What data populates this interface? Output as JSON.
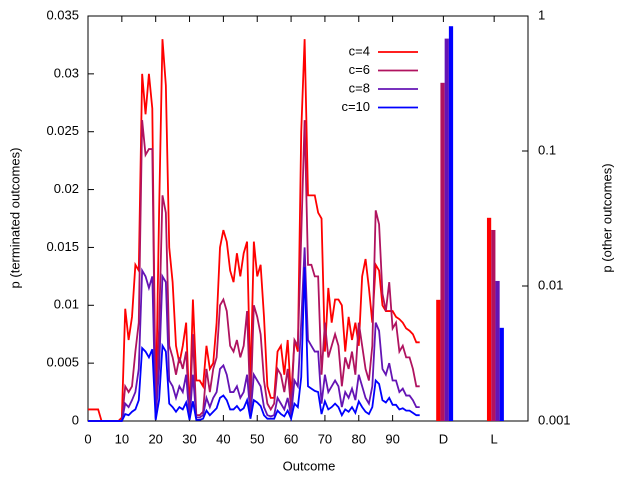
{
  "chart_data": {
    "type": "line",
    "x_label": "Outcome",
    "y_label": "p (terminated outcomes)",
    "y2_label": "p (other outcomes)",
    "xlim": [
      0,
      130
    ],
    "xticks": [
      0,
      10,
      20,
      30,
      40,
      50,
      60,
      70,
      80,
      90,
      {
        "value": 105,
        "label": "D"
      },
      {
        "value": 120,
        "label": "L"
      }
    ],
    "ylim": [
      0,
      0.035
    ],
    "yticks": [
      0,
      0.005,
      0.01,
      0.015,
      0.02,
      0.025,
      0.03,
      0.035
    ],
    "y2lim": [
      0.001,
      1
    ],
    "y2ticks": [
      0.001,
      0.01,
      0.1,
      1
    ],
    "y2_log": true,
    "legend": "top-right",
    "x": [
      0,
      1,
      2,
      3,
      4,
      5,
      6,
      7,
      8,
      9,
      10,
      11,
      12,
      13,
      14,
      15,
      16,
      17,
      18,
      19,
      20,
      21,
      22,
      23,
      24,
      25,
      26,
      27,
      28,
      29,
      30,
      31,
      32,
      33,
      34,
      35,
      36,
      37,
      38,
      39,
      40,
      41,
      42,
      43,
      44,
      45,
      46,
      47,
      48,
      49,
      50,
      51,
      52,
      53,
      54,
      55,
      56,
      57,
      58,
      59,
      60,
      61,
      62,
      63,
      64,
      65,
      66,
      67,
      68,
      69,
      70,
      71,
      72,
      73,
      74,
      75,
      76,
      77,
      78,
      79,
      80,
      81,
      82,
      83,
      84,
      85,
      86,
      87,
      88,
      89,
      90,
      91,
      92,
      93,
      94,
      95,
      96,
      97,
      98
    ],
    "series": [
      {
        "name": "c=4",
        "color": "#ff0000",
        "values": [
          0.001,
          0.001,
          0.001,
          0.001,
          0,
          0,
          0,
          0,
          0,
          0,
          0.0003,
          0.0097,
          0.007,
          0.009,
          0.0135,
          0.013,
          0.03,
          0.0265,
          0.03,
          0.027,
          0.0005,
          0.018,
          0.033,
          0.029,
          0.015,
          0.012,
          0.0065,
          0.005,
          0.0065,
          0.0085,
          0.0005,
          0.0105,
          0.0035,
          0.0035,
          0.003,
          0.0065,
          0.0045,
          0.005,
          0.0085,
          0.015,
          0.0165,
          0.0155,
          0.013,
          0.012,
          0.0145,
          0.0125,
          0.0145,
          0.0155,
          0.003,
          0.0155,
          0.0125,
          0.0135,
          0.009,
          0.003,
          0.002,
          0.002,
          0.006,
          0.0065,
          0.004,
          0.007,
          0.002,
          0.007,
          0.006,
          0.025,
          0.033,
          0.0195,
          0.0195,
          0.0195,
          0.018,
          0.0175,
          0.006,
          0.0115,
          0.0085,
          0.0105,
          0.0105,
          0.01,
          0.006,
          0.009,
          0.007,
          0.0085,
          0.0065,
          0.0125,
          0.014,
          0.0115,
          0.0085,
          0.0135,
          0.013,
          0.01,
          0.0095,
          0.0095,
          0.0095,
          0.009,
          0.0088,
          0.0085,
          0.008,
          0.0078,
          0.0075,
          0.0068,
          0.0068
        ]
      },
      {
        "name": "c=6",
        "color": "#b0135f",
        "values": [
          0,
          0,
          0,
          0,
          0,
          0,
          0,
          0,
          0,
          0,
          0,
          0.003,
          0.0025,
          0.003,
          0.006,
          0.0085,
          0.026,
          0.023,
          0.0235,
          0.0235,
          0.0003,
          0.008,
          0.0195,
          0.018,
          0.0065,
          0.0055,
          0.004,
          0.0055,
          0.0045,
          0.006,
          0.0003,
          0.0075,
          0.0005,
          0.0005,
          0.0008,
          0.0045,
          0.0025,
          0.0045,
          0.0055,
          0.01,
          0.0105,
          0.0095,
          0.0065,
          0.006,
          0.007,
          0.0055,
          0.0065,
          0.0095,
          0.001,
          0.01,
          0.009,
          0.0075,
          0.0035,
          0.0015,
          0.001,
          0.0015,
          0.0045,
          0.004,
          0.0025,
          0.0045,
          0.001,
          0.007,
          0.0065,
          0.016,
          0.026,
          0.0135,
          0.0135,
          0.0125,
          0.0125,
          0.004,
          0.0085,
          0.0055,
          0.0065,
          0.0075,
          0.0065,
          0.003,
          0.0055,
          0.0045,
          0.006,
          0.004,
          0.0085,
          0.0065,
          0.0045,
          0.0035,
          0.0065,
          0.0182,
          0.017,
          0.011,
          0.0095,
          0.012,
          0.008,
          0.0085,
          0.006,
          0.0065,
          0.0055,
          0.0055,
          0.0045,
          0.003,
          0.003
        ]
      },
      {
        "name": "c=8",
        "color": "#6414b4",
        "values": [
          0,
          0,
          0,
          0,
          0,
          0,
          0,
          0,
          0,
          0,
          0,
          0.0015,
          0.0012,
          0.0018,
          0.0025,
          0.0045,
          0.013,
          0.0125,
          0.0115,
          0.0125,
          0.0002,
          0.0045,
          0.0125,
          0.012,
          0.0035,
          0.003,
          0.002,
          0.003,
          0.0025,
          0.004,
          0.0002,
          0.004,
          0.0003,
          0.0003,
          0.0005,
          0.002,
          0.0012,
          0.002,
          0.0025,
          0.0045,
          0.0048,
          0.004,
          0.0025,
          0.0025,
          0.003,
          0.002,
          0.0025,
          0.004,
          0.0005,
          0.004,
          0.0035,
          0.003,
          0.0012,
          0.0005,
          0.0004,
          0.0005,
          0.002,
          0.0015,
          0.001,
          0.002,
          0.0004,
          0.0035,
          0.003,
          0.0085,
          0.015,
          0.007,
          0.0065,
          0.006,
          0.006,
          0.0015,
          0.004,
          0.0025,
          0.003,
          0.0035,
          0.003,
          0.0012,
          0.0025,
          0.002,
          0.0028,
          0.0018,
          0.004,
          0.003,
          0.002,
          0.0015,
          0.003,
          0.0085,
          0.0078,
          0.0045,
          0.004,
          0.005,
          0.0035,
          0.0035,
          0.0025,
          0.0028,
          0.0022,
          0.0022,
          0.0018,
          0.0012,
          0.0012
        ]
      },
      {
        "name": "c=10",
        "color": "#0000ff",
        "values": [
          0,
          0,
          0,
          0,
          0,
          0,
          0,
          0,
          0,
          0,
          0,
          0.0006,
          0.0005,
          0.0008,
          0.001,
          0.0018,
          0.0063,
          0.006,
          0.0055,
          0.0062,
          0.0001,
          0.0018,
          0.0065,
          0.006,
          0.0015,
          0.0012,
          0.0008,
          0.0012,
          0.001,
          0.0016,
          0.0001,
          0.0017,
          0.0001,
          0.0001,
          0.0002,
          0.0009,
          0.0005,
          0.0008,
          0.0011,
          0.002,
          0.0022,
          0.0018,
          0.001,
          0.001,
          0.0013,
          0.0009,
          0.0011,
          0.0018,
          0.0002,
          0.0018,
          0.0016,
          0.0013,
          0.0005,
          0.0002,
          0.0002,
          0.0002,
          0.0009,
          0.0006,
          0.0004,
          0.0009,
          0.0002,
          0.0015,
          0.0012,
          0.0038,
          0.0133,
          0.003,
          0.0028,
          0.0026,
          0.0025,
          0.0006,
          0.0017,
          0.001,
          0.0012,
          0.0015,
          0.0012,
          0.0005,
          0.001,
          0.0008,
          0.0012,
          0.0007,
          0.0017,
          0.0012,
          0.0008,
          0.0006,
          0.0012,
          0.0035,
          0.0032,
          0.0018,
          0.0016,
          0.002,
          0.0014,
          0.0014,
          0.001,
          0.0011,
          0.0009,
          0.0009,
          0.0007,
          0.0005,
          0.0005
        ]
      }
    ],
    "other": {
      "type": "bar",
      "axis": "y2",
      "x": [
        105,
        120
      ],
      "series": [
        {
          "color": "#ff0000",
          "values": [
            0.0079,
            0.032
          ]
        },
        {
          "color": "#b0135f",
          "values": [
            0.32,
            0.026
          ]
        },
        {
          "color": "#6414b4",
          "values": [
            0.68,
            0.0109
          ]
        },
        {
          "color": "#0000ff",
          "values": [
            0.84,
            0.0049
          ]
        }
      ]
    }
  }
}
